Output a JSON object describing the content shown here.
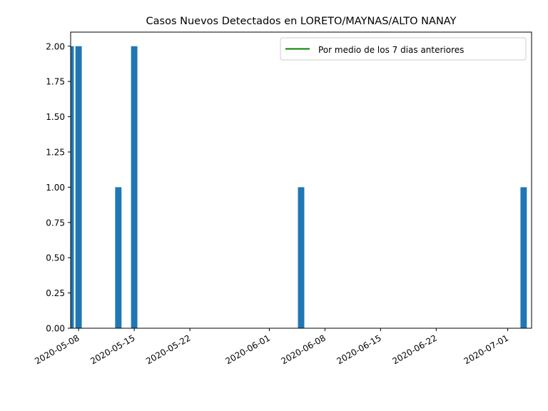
{
  "chart_data": {
    "type": "bar",
    "title": "Casos Nuevos Detectados en LORETO/MAYNAS/ALTO NANAY",
    "xlabel": "",
    "ylabel": "",
    "x_axis": "date",
    "xlim": [
      "2020-05-07",
      "2020-07-04"
    ],
    "ylim": [
      0,
      2.1
    ],
    "yticks": [
      "0.00",
      "0.25",
      "0.50",
      "0.75",
      "1.00",
      "1.25",
      "1.50",
      "1.75",
      "2.00"
    ],
    "xticks": [
      "2020-05-08",
      "2020-05-15",
      "2020-05-22",
      "2020-06-01",
      "2020-06-08",
      "2020-06-15",
      "2020-06-22",
      "2020-07-01"
    ],
    "bars": [
      {
        "date": "2020-05-07",
        "value": 2
      },
      {
        "date": "2020-05-08",
        "value": 2
      },
      {
        "date": "2020-05-13",
        "value": 1
      },
      {
        "date": "2020-05-15",
        "value": 2
      },
      {
        "date": "2020-06-05",
        "value": 1
      },
      {
        "date": "2020-07-03",
        "value": 1
      }
    ],
    "bar_color": "#1f77b4",
    "legend": {
      "position": "top-right",
      "entries": [
        {
          "label": "Por medio de los 7 dias anteriores",
          "color": "#008000",
          "marker": "line"
        }
      ]
    },
    "grid": false
  }
}
